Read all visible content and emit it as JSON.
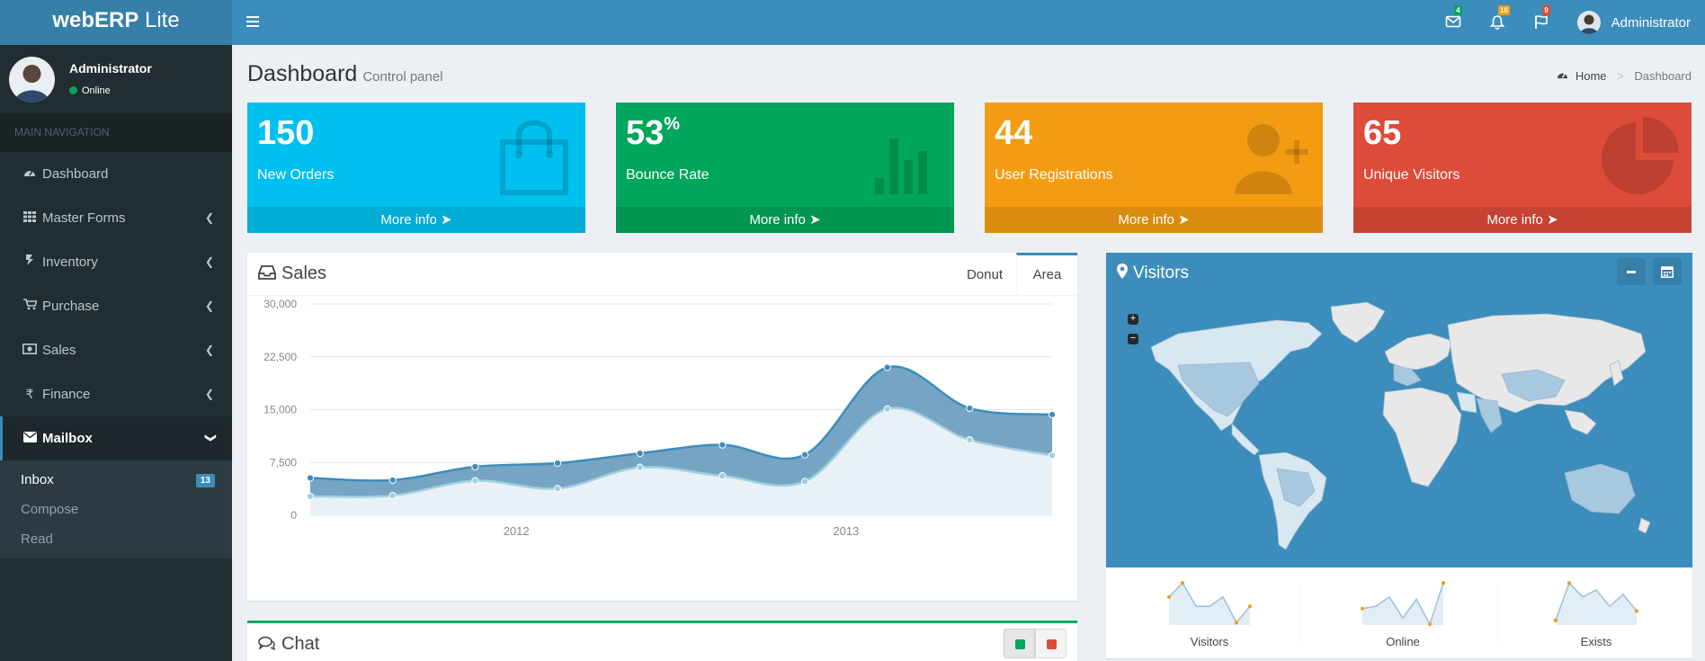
{
  "header": {
    "logo_bold": "webERP",
    "logo_light": " Lite",
    "messages_count": "4",
    "notifications_count": "10",
    "tasks_count": "9",
    "user_name": "Administrator"
  },
  "sidebar": {
    "user_name": "Administrator",
    "status": "Online",
    "nav_header": "MAIN NAVIGATION",
    "items": [
      {
        "label": "Dashboard",
        "icon": "dashboard-icon"
      },
      {
        "label": "Master Forms",
        "icon": "th-icon"
      },
      {
        "label": "Inventory",
        "icon": "inventory-icon"
      },
      {
        "label": "Purchase",
        "icon": "cart-icon"
      },
      {
        "label": "Sales",
        "icon": "money-icon"
      },
      {
        "label": "Finance",
        "icon": "rupee-icon"
      },
      {
        "label": "Mailbox",
        "icon": "envelope-icon"
      }
    ],
    "mailbox_sub": [
      {
        "label": "Inbox",
        "badge": "13"
      },
      {
        "label": "Compose"
      },
      {
        "label": "Read"
      }
    ]
  },
  "page": {
    "title": "Dashboard",
    "subtitle": "Control panel",
    "breadcrumb_home": "Home",
    "breadcrumb_current": "Dashboard"
  },
  "stats": [
    {
      "value": "150",
      "label": "New Orders",
      "link": "More info",
      "color": "#00c0ef",
      "icon": "shopping-bag-icon"
    },
    {
      "value": "53",
      "suffix": "%",
      "label": "Bounce Rate",
      "link": "More info",
      "color": "#00a65a",
      "icon": "bar-chart-icon"
    },
    {
      "value": "44",
      "label": "User Registrations",
      "link": "More info",
      "color": "#f39c12",
      "icon": "user-plus-icon"
    },
    {
      "value": "65",
      "label": "Unique Visitors",
      "link": "More info",
      "color": "#dd4b39",
      "icon": "pie-chart-icon"
    }
  ],
  "sales": {
    "title": "Sales",
    "tabs": [
      "Donut",
      "Area"
    ],
    "active_tab": "Area"
  },
  "chart_data": {
    "type": "area",
    "xlabels": [
      "2012",
      "2013"
    ],
    "yticks": [
      0,
      7500,
      15000,
      22500,
      30000
    ],
    "ytick_labels": [
      "0",
      "7,500",
      "15,000",
      "22,500",
      "30,000"
    ],
    "ylim": [
      0,
      30000
    ],
    "grid": true,
    "series": [
      {
        "color": "#3c8dbc",
        "values": [
          5300,
          5000,
          6900,
          7400,
          8800,
          10000,
          8600,
          21000,
          15200,
          14300
        ]
      },
      {
        "color": "#a0d0e0",
        "values": [
          2700,
          2800,
          4900,
          3800,
          6800,
          5600,
          4800,
          15100,
          10700,
          8500
        ]
      }
    ]
  },
  "chat": {
    "title": "Chat"
  },
  "visitors": {
    "title": "Visitors",
    "sparklines": [
      {
        "label": "Visitors",
        "values": [
          60,
          90,
          40,
          40,
          60,
          5,
          40
        ]
      },
      {
        "label": "Online",
        "values": [
          35,
          40,
          60,
          15,
          55,
          2,
          90
        ]
      },
      {
        "label": "Exists",
        "values": [
          10,
          90,
          60,
          75,
          40,
          65,
          30
        ]
      }
    ]
  }
}
